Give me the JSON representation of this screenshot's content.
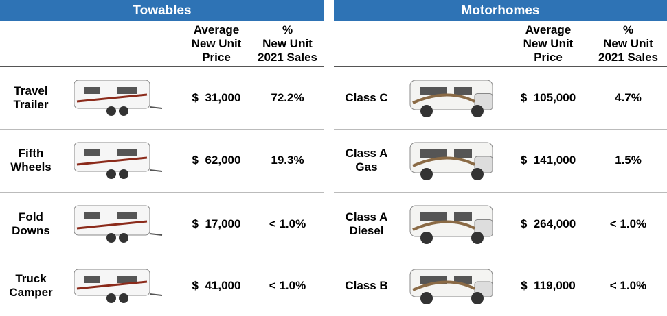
{
  "towables": {
    "title": "Towables",
    "headers": {
      "price": [
        "Average",
        "New Unit",
        "Price"
      ],
      "share": [
        "%",
        "New Unit",
        "2021 Sales"
      ]
    },
    "rows": [
      {
        "name": [
          "Travel",
          "Trailer"
        ],
        "price": "$  31,000",
        "share": "72.2%"
      },
      {
        "name": [
          "Fifth",
          "Wheels"
        ],
        "price": "$  62,000",
        "share": "19.3%"
      },
      {
        "name": [
          "Fold",
          "Downs"
        ],
        "price": "$  17,000",
        "share": "< 1.0%"
      },
      {
        "name": [
          "Truck",
          "Camper"
        ],
        "price": "$  41,000",
        "share": "< 1.0%"
      }
    ]
  },
  "motorhomes": {
    "title": "Motorhomes",
    "headers": {
      "price": [
        "Average",
        "New Unit",
        "Price"
      ],
      "share": [
        "%",
        "New Unit",
        "2021 Sales"
      ]
    },
    "rows": [
      {
        "name": [
          "Class C"
        ],
        "price": "$  105,000",
        "share": "4.7%"
      },
      {
        "name": [
          "Class A",
          "Gas"
        ],
        "price": "$  141,000",
        "share": "1.5%"
      },
      {
        "name": [
          "Class A",
          "Diesel"
        ],
        "price": "$  264,000",
        "share": "< 1.0%"
      },
      {
        "name": [
          "Class B"
        ],
        "price": "$  119,000",
        "share": "< 1.0%"
      }
    ]
  }
}
